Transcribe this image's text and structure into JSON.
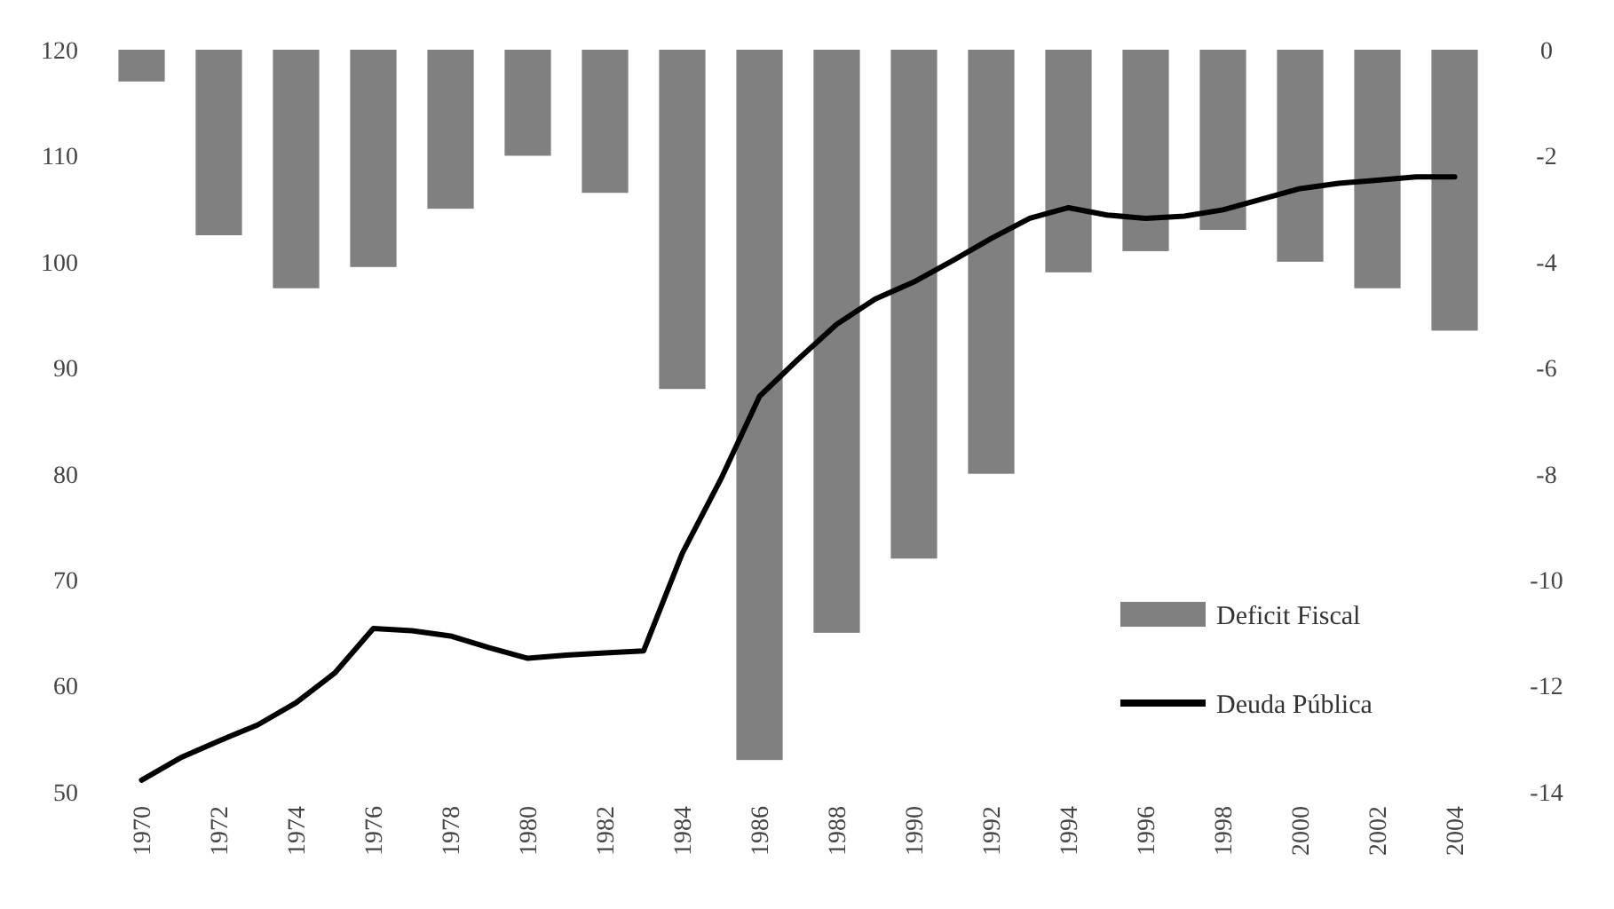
{
  "chart_data": {
    "type": "line",
    "xlim": [
      1970,
      2004
    ],
    "xticks": [
      1970,
      1972,
      1974,
      1976,
      1978,
      1980,
      1982,
      1984,
      1986,
      1988,
      1990,
      1992,
      1994,
      1996,
      1998,
      2000,
      2002,
      2004
    ],
    "ylim": [
      50,
      120
    ],
    "yticks": [
      50,
      60,
      70,
      80,
      90,
      100,
      110,
      120
    ],
    "y2lim": [
      -14,
      0
    ],
    "y2ticks": [
      -14,
      -12,
      -10,
      -8,
      -6,
      -4,
      -2,
      0
    ],
    "grid": false,
    "legend": "bottom right",
    "series": [
      {
        "name": "Deficit Fiscal",
        "type": "bar",
        "axis": "y2",
        "color": "#808080",
        "x": [
          1970,
          1972,
          1974,
          1976,
          1978,
          1980,
          1982,
          1984,
          1986,
          1988,
          1990,
          1992,
          1994,
          1996,
          1998,
          2000,
          2002,
          2004
        ],
        "values": [
          -0.6,
          -3.5,
          -4.5,
          -4.1,
          -3.0,
          -2.0,
          -2.7,
          -6.4,
          -13.4,
          -11.0,
          -9.6,
          -8.0,
          -4.2,
          -3.8,
          -3.4,
          -4.0,
          -4.5,
          -5.3
        ]
      },
      {
        "name": "Deuda Pública",
        "axis": "y",
        "color": "#000000",
        "x": [
          1970,
          1971,
          1972,
          1973,
          1974,
          1975,
          1976,
          1977,
          1978,
          1979,
          1980,
          1981,
          1982,
          1983,
          1984,
          1985,
          1986,
          1987,
          1988,
          1989,
          1990,
          1991,
          1992,
          1993,
          1994,
          1995,
          1996,
          1997,
          1998,
          1999,
          2000,
          2001,
          2002,
          2003,
          2004
        ],
        "values": [
          51.1,
          53.2,
          54.8,
          56.3,
          58.4,
          61.2,
          65.4,
          65.2,
          64.7,
          63.6,
          62.6,
          62.9,
          63.1,
          63.3,
          72.5,
          79.5,
          87.3,
          90.8,
          94.1,
          96.5,
          98.1,
          100.1,
          102.2,
          104.1,
          105.1,
          104.4,
          104.1,
          104.3,
          104.9,
          105.9,
          106.9,
          107.4,
          107.7,
          108.0,
          108.0
        ]
      }
    ]
  }
}
